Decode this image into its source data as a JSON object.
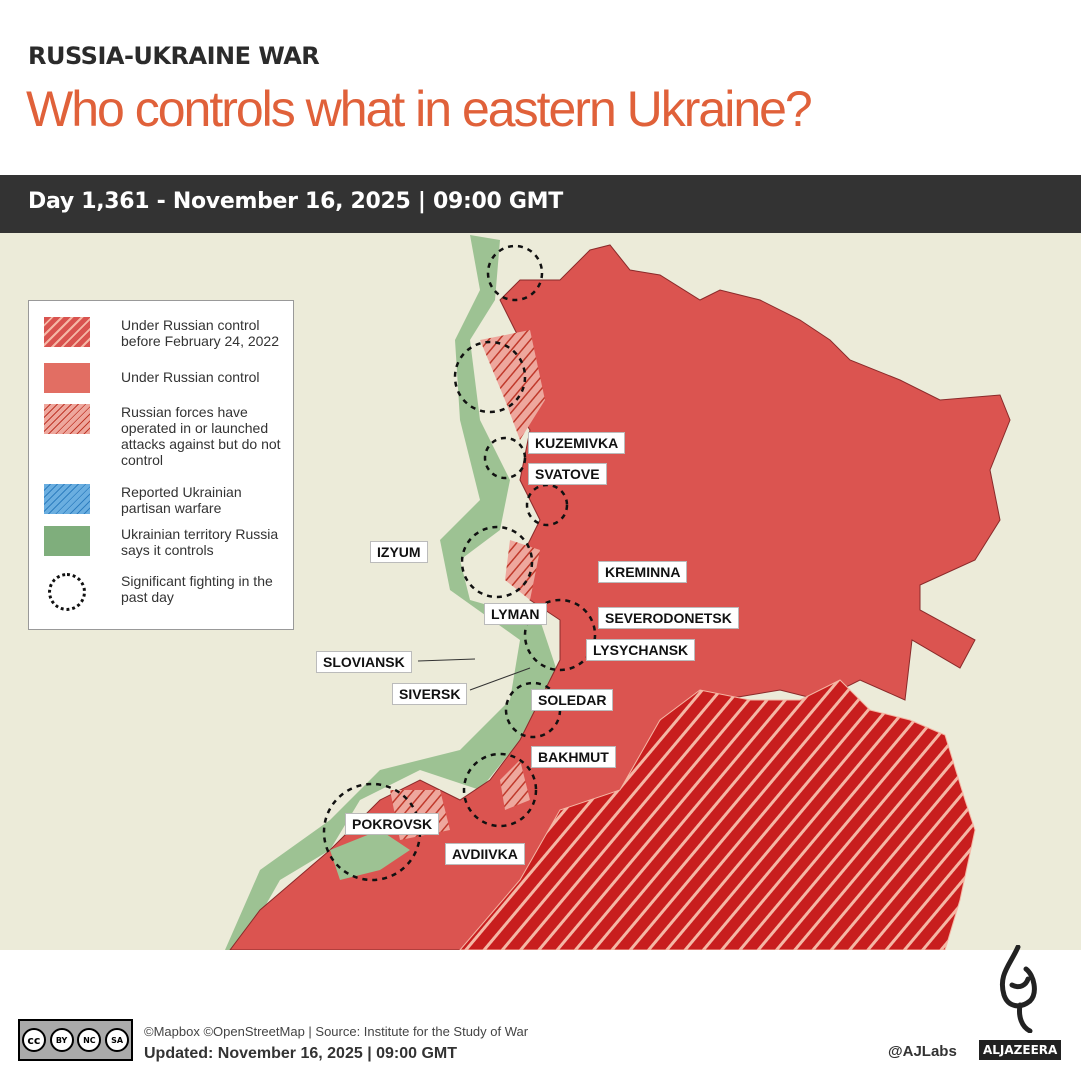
{
  "header": {
    "kicker": "RUSSIA-UKRAINE WAR",
    "title": "Who controls what in eastern Ukraine?",
    "date_bar": "Day 1,361 - November 16, 2025  |  09:00 GMT"
  },
  "colors": {
    "title": "#e0613a",
    "russian_control": "#d9534f",
    "pre2022": "#c81e1e",
    "ukrainian_claimed": "#8fb98a",
    "partisan": "#6aaee0",
    "map_bg": "#ecebd9"
  },
  "legend": [
    {
      "label": "Under Russian control before February 24, 2022",
      "icon": "red-hatch-swatch"
    },
    {
      "label": "Under Russian control",
      "icon": "red-swatch"
    },
    {
      "label": "Russian forces have operated in or launched attacks against but do not control",
      "icon": "light-red-hatch-swatch"
    },
    {
      "label": "Reported Ukrainian partisan warfare",
      "icon": "blue-hatch-swatch"
    },
    {
      "label": "Ukrainian territory Russia says it controls",
      "icon": "green-swatch"
    },
    {
      "label": "Significant fighting in the past day",
      "icon": "dashed-circle"
    }
  ],
  "places": [
    "KUZEMIVKA",
    "SVATOVE",
    "IZYUM",
    "KREMINNA",
    "LYMAN",
    "SEVERODONETSK",
    "SLOVIANSK",
    "LYSYCHANSK",
    "SIVERSK",
    "SOLEDAR",
    "BAKHMUT",
    "POKROVSK",
    "AVDIIVKA"
  ],
  "footer": {
    "credits": "©Mapbox ©OpenStreetMap | Source: Institute for the Study of War",
    "updated": "Updated: November 16, 2025  |  09:00 GMT",
    "handle": "@AJLabs",
    "brand": "ALJAZEERA",
    "license": [
      "BY",
      "NC",
      "SA"
    ]
  }
}
